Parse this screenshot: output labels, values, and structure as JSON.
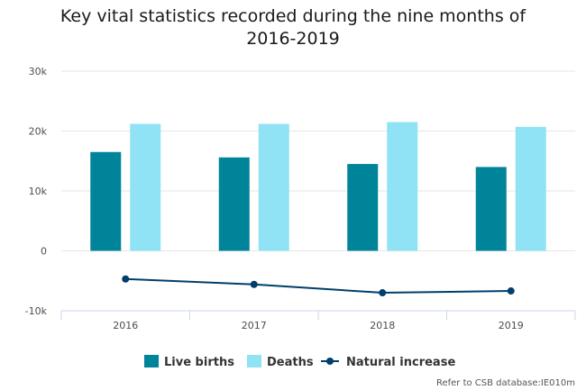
{
  "chart_data": {
    "type": "bar",
    "title_line1": "Key vital statistics recorded during the nine months of",
    "title_line2": "2016-2019",
    "categories": [
      "2016",
      "2017",
      "2018",
      "2019"
    ],
    "series": [
      {
        "name": "Live births",
        "type": "bar",
        "color": "#00849a",
        "values": [
          16500,
          15600,
          14500,
          14000
        ]
      },
      {
        "name": "Deaths",
        "type": "bar",
        "color": "#8fe3f4",
        "values": [
          21200,
          21200,
          21500,
          20700
        ]
      },
      {
        "name": "Natural increase",
        "type": "line",
        "color": "#003f6b",
        "values": [
          -4700,
          -5600,
          -7000,
          -6700
        ]
      }
    ],
    "ylim": [
      -10000,
      30000
    ],
    "yticks": [
      {
        "value": 30000,
        "label": "30k"
      },
      {
        "value": 20000,
        "label": "20k"
      },
      {
        "value": 10000,
        "label": "10k"
      },
      {
        "value": 0,
        "label": "0"
      },
      {
        "value": -10000,
        "label": "-10k"
      }
    ],
    "grid": true,
    "legend_position": "bottom-center",
    "credit": "Refer to CSB database:IE010m"
  }
}
